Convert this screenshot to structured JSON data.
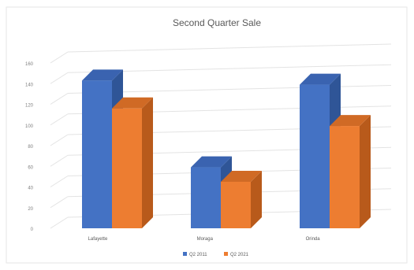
{
  "chart_data": {
    "type": "bar",
    "title": "Second Quarter Sale",
    "categories": [
      "Lafayette",
      "Moraga",
      "Orinda"
    ],
    "series": [
      {
        "name": "Q2 2011",
        "values": [
          143,
          59,
          139
        ],
        "color": "#4472C4",
        "side_color": "#2F5597",
        "top_color": "#3A63B0"
      },
      {
        "name": "Q2 2021",
        "values": [
          116,
          45,
          99
        ],
        "color": "#ED7D31",
        "side_color": "#B85A1B",
        "top_color": "#D06A25"
      }
    ],
    "yticks": [
      "0",
      "20",
      "40",
      "60",
      "80",
      "100",
      "120",
      "140",
      "160"
    ],
    "ylim": [
      0,
      160
    ],
    "grid": true,
    "legend_position": "bottom",
    "xlabel": "",
    "ylabel": ""
  }
}
